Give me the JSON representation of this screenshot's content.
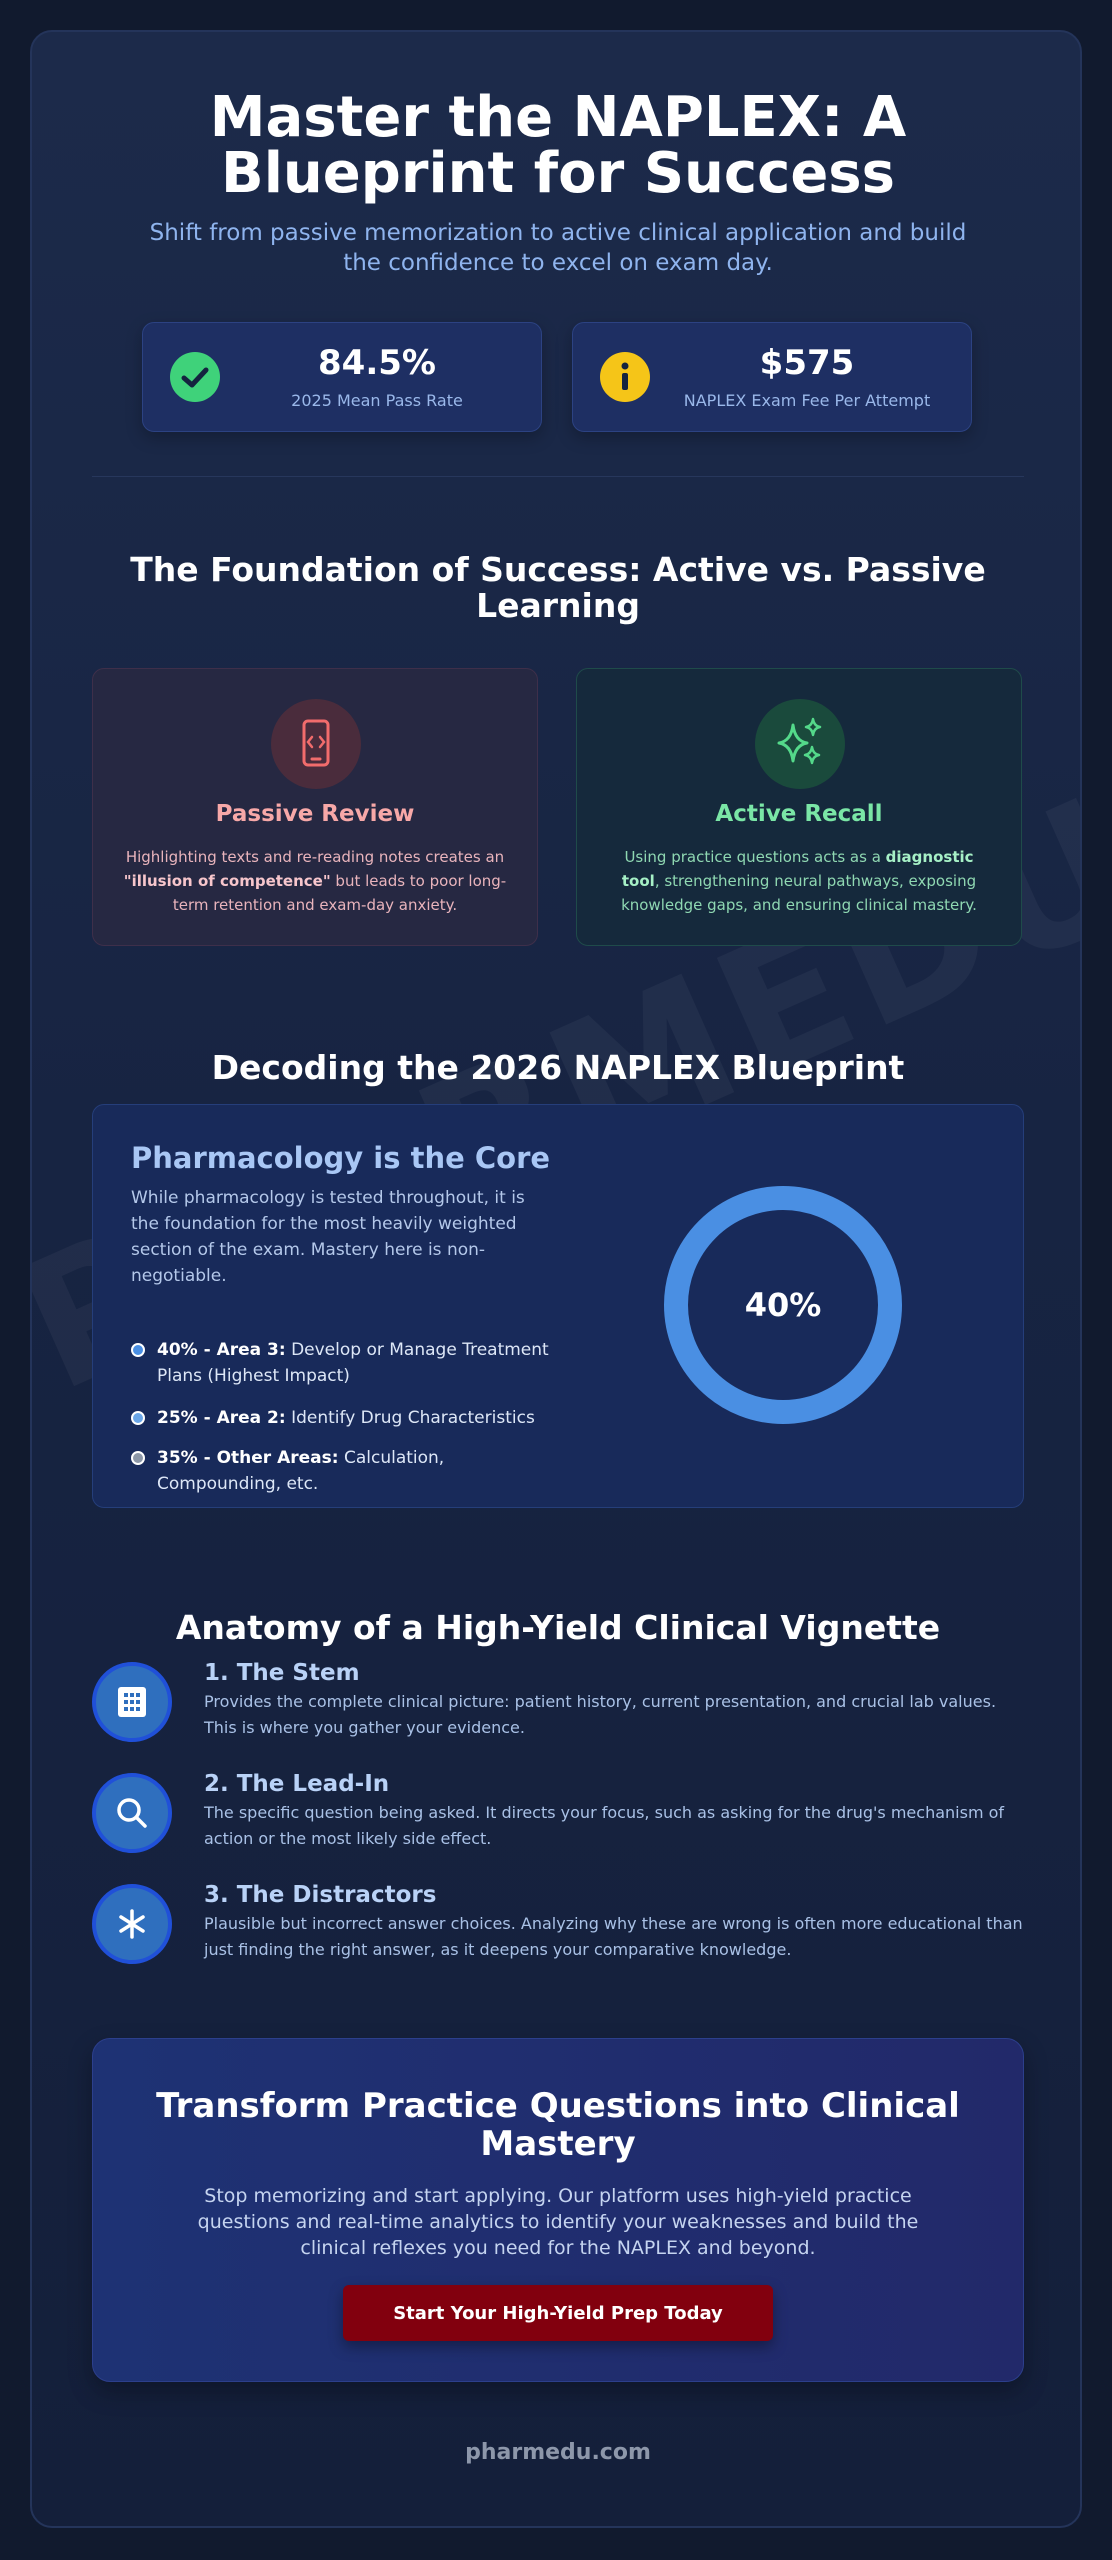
{
  "hero": {
    "title": "Master the NAPLEX: A Blueprint for Success",
    "subtitle": "Shift from passive memorization to active clinical application and build the confidence to excel on exam day."
  },
  "stats": [
    {
      "value": "84.5%",
      "label": "2025 Mean Pass Rate",
      "icon": "check-icon",
      "color": "#3fd27a"
    },
    {
      "value": "$575",
      "label": "NAPLEX Exam Fee Per Attempt",
      "icon": "info-icon",
      "color": "#f5c518"
    }
  ],
  "foundation": {
    "title": "The Foundation of Success: Active vs. Passive Learning",
    "passive": {
      "title": "Passive Review",
      "text_before": "Highlighting texts and re-reading notes creates an ",
      "text_bold": "\"illusion of competence\"",
      "text_after": " but leads to poor long-term retention and exam-day anxiety.",
      "icon": "phone-swipe-icon",
      "color": "#f28c8c"
    },
    "active": {
      "title": "Active Recall",
      "text_before": "Using practice questions acts as a ",
      "text_bold": "diagnostic tool",
      "text_after": ", strengthening neural pathways, exposing knowledge gaps, and ensuring clinical mastery.",
      "icon": "sparkles-icon",
      "color": "#63d88e"
    }
  },
  "blueprint": {
    "title": "Decoding the 2026 NAPLEX Blueprint",
    "card_title": "Pharmacology is the Core",
    "card_text": "While pharmacology is tested throughout, it is the foundation for the most heavily weighted section of the exam. Mastery here is non-negotiable.",
    "items": [
      {
        "bold": "40% - Area 3:",
        "text": " Develop or Manage Treatment Plans (Highest Impact)",
        "color": "#4a8fe3"
      },
      {
        "bold": "25% - Area 2:",
        "text": " Identify Drug Characteristics",
        "color": "#6aa6e8"
      },
      {
        "bold": "35% - Other Areas:",
        "text": " Calculation, Compounding, etc.",
        "color": "#8c97a8"
      }
    ],
    "donut_label": "40%",
    "donut_color": "#4a8fe3"
  },
  "anatomy": {
    "title": "Anatomy of a High-Yield Clinical Vignette",
    "steps": [
      {
        "title": "1. The Stem",
        "text": "Provides the complete clinical picture: patient history, current presentation, and crucial lab values. This is where you gather your evidence.",
        "icon": "building-icon"
      },
      {
        "title": "2. The Lead-In",
        "text": "The specific question being asked. It directs your focus, such as asking for the drug's mechanism of action or the most likely side effect.",
        "icon": "search-icon"
      },
      {
        "title": "3. The Distractors",
        "text": "Plausible but incorrect answer choices. Analyzing why these are wrong is often more educational than just finding the right answer, as it deepens your comparative knowledge.",
        "icon": "asterisk-icon"
      }
    ]
  },
  "cta": {
    "title": "Transform Practice Questions into Clinical Mastery",
    "text": "Stop memorizing and start applying. Our platform uses high-yield practice questions and real-time analytics to identify your weaknesses and build the clinical reflexes you need for the NAPLEX and beyond.",
    "button_label": "Start Your High-Yield Prep Today"
  },
  "footer": {
    "site": "pharmedu.com"
  },
  "watermark": "PHARMEDU.COM"
}
